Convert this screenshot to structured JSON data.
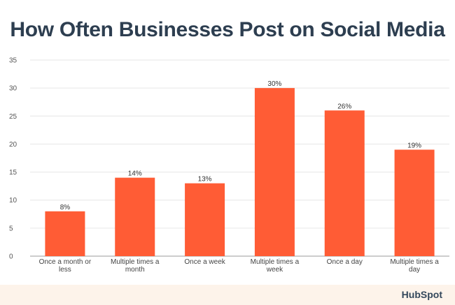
{
  "title": "How Often Businesses Post on Social Media",
  "footer": {
    "logo_text": "HubSpot"
  },
  "chart_data": {
    "type": "bar",
    "title": "How Often Businesses Post on Social Media",
    "xlabel": "",
    "ylabel": "",
    "categories": [
      "Once a month or less",
      "Multiple times a month",
      "Once a week",
      "Multiple times a week",
      "Once a day",
      "Multiple times a day"
    ],
    "values": [
      8,
      14,
      13,
      30,
      26,
      19
    ],
    "data_labels": [
      "8%",
      "14%",
      "13%",
      "30%",
      "26%",
      "19%"
    ],
    "ylim": [
      0,
      35
    ],
    "yticks": [
      0,
      5,
      10,
      15,
      20,
      25,
      30,
      35
    ],
    "grid": true,
    "bar_color": "#ff5c35",
    "title_color": "#2d3e50"
  }
}
